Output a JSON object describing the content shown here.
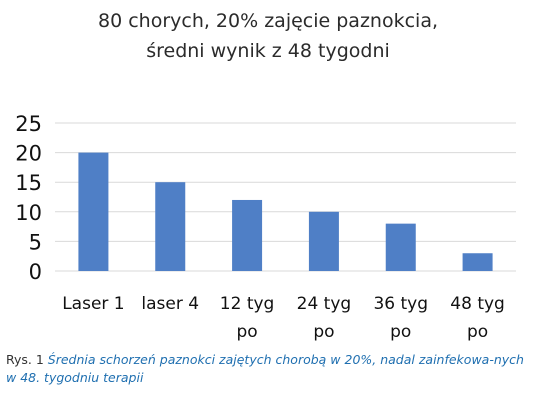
{
  "chart_data": {
    "type": "bar",
    "title_lines": [
      "80 chorych, 20% zajęcie paznokcia,",
      "średni wynik z 48 tygodni"
    ],
    "categories": [
      [
        "Laser 1"
      ],
      [
        "laser 4"
      ],
      [
        "12 tyg",
        "po"
      ],
      [
        "24 tyg",
        "po"
      ],
      [
        "36 tyg",
        "po"
      ],
      [
        "48 tyg",
        "po"
      ]
    ],
    "values": [
      20,
      15,
      12,
      10,
      8,
      3
    ],
    "yticks": [
      0,
      5,
      10,
      15,
      20,
      25
    ],
    "ylim": [
      0,
      25
    ],
    "grid": true,
    "legend": "none",
    "bar_color": "#4f7fc6",
    "grid_color": "#d9d9d9"
  },
  "caption": {
    "prefix": "Rys. 1",
    "text": "Średnia schorzeń paznokci zajętych chorobą w 20%, nadal zainfekowa-nych w 48. tygodniu terapii"
  }
}
